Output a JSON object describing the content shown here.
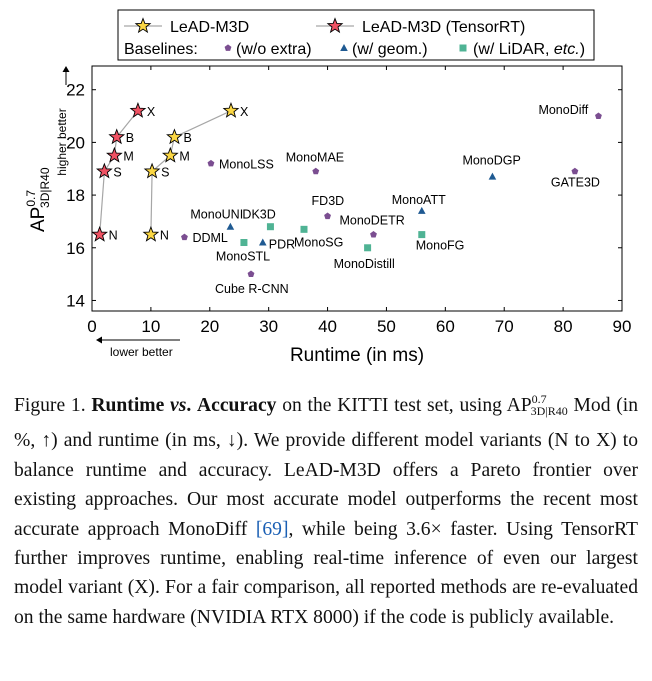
{
  "chart_data": {
    "type": "scatter",
    "xlabel": "Runtime (in ms)",
    "ylabel": "AP 0.7 3D|R40",
    "ylabel_parts": {
      "base": "AP",
      "sup": "0.7",
      "sub": "3D|R40"
    },
    "higher_better": "higher better",
    "lower_better": "lower better",
    "xlim": [
      0,
      90
    ],
    "ylim": [
      13.6,
      22.9
    ],
    "xticks": [
      0,
      10,
      20,
      30,
      40,
      50,
      60,
      70,
      80,
      90
    ],
    "yticks": [
      14,
      16,
      18,
      20,
      22
    ],
    "legend": {
      "series1": "LeAD-M3D",
      "series2": "LeAD-M3D (TensorRT)",
      "baselines_label": "Baselines:",
      "b1": "(w/o extra)",
      "b2": "(w/ geom.)",
      "b3_pre": "(w/ LiDAR,",
      "b3_italic": "etc.",
      "b3_post": ")"
    },
    "colors": {
      "star_default": "#fbd744",
      "star_tensorrt": "#ef5263",
      "wo_extra": "#7b4e91",
      "geom": "#1f5a92",
      "lidar": "#4fb394",
      "line": "#a6a6a6"
    },
    "series": [
      {
        "name": "LeAD-M3D",
        "marker": "star",
        "points": [
          {
            "label": "N",
            "x": 10.0,
            "y": 16.5
          },
          {
            "label": "S",
            "x": 10.2,
            "y": 18.9
          },
          {
            "label": "M",
            "x": 13.3,
            "y": 19.5
          },
          {
            "label": "B",
            "x": 14.0,
            "y": 20.2
          },
          {
            "label": "X",
            "x": 23.6,
            "y": 21.2
          }
        ]
      },
      {
        "name": "LeAD-M3D (TensorRT)",
        "marker": "star",
        "points": [
          {
            "label": "N",
            "x": 1.3,
            "y": 16.5
          },
          {
            "label": "S",
            "x": 2.1,
            "y": 18.9
          },
          {
            "label": "M",
            "x": 3.8,
            "y": 19.5
          },
          {
            "label": "B",
            "x": 4.2,
            "y": 20.2
          },
          {
            "label": "X",
            "x": 7.8,
            "y": 21.2
          }
        ]
      }
    ],
    "baselines": [
      {
        "name": "MonoDiff",
        "group": "wo_extra",
        "x": 86.0,
        "y": 21.0
      },
      {
        "name": "GATE3D",
        "group": "wo_extra",
        "x": 82.0,
        "y": 18.9
      },
      {
        "name": "MonoLSS",
        "group": "wo_extra",
        "x": 20.2,
        "y": 19.2
      },
      {
        "name": "MonoMAE",
        "group": "wo_extra",
        "x": 38.0,
        "y": 18.9
      },
      {
        "name": "DDML",
        "group": "wo_extra",
        "x": 15.7,
        "y": 16.4
      },
      {
        "name": "Cube R-CNN",
        "group": "wo_extra",
        "x": 27.0,
        "y": 15.0
      },
      {
        "name": "MonoDETR",
        "group": "wo_extra",
        "x": 47.8,
        "y": 16.5
      },
      {
        "name": "MonoDGP",
        "group": "geom",
        "x": 68.0,
        "y": 18.7
      },
      {
        "name": "MonoATT",
        "group": "geom",
        "x": 56.0,
        "y": 17.4
      },
      {
        "name": "MonoUNI",
        "group": "geom",
        "x": 23.5,
        "y": 16.8
      },
      {
        "name": "PDR",
        "group": "geom",
        "x": 29.0,
        "y": 16.2
      },
      {
        "name": "DK3D",
        "group": "lidar",
        "x": 30.3,
        "y": 16.8
      },
      {
        "name": "FD3D",
        "group": "wo_extra",
        "x": 40.0,
        "y": 17.2
      },
      {
        "name": "MonoSTL",
        "group": "lidar",
        "x": 25.8,
        "y": 16.2
      },
      {
        "name": "MonoSG",
        "group": "lidar",
        "x": 36.0,
        "y": 16.7
      },
      {
        "name": "MonoDistill",
        "group": "lidar",
        "x": 46.8,
        "y": 16.0
      },
      {
        "name": "MonoFG",
        "group": "lidar",
        "x": 56.0,
        "y": 16.5
      }
    ]
  },
  "caption": {
    "figure_label": "Figure 1.",
    "title_a": "Runtime",
    "title_vs": "vs",
    "title_dot": ".",
    "title_b": "Accuracy",
    "t1": "on the KITTI test set, using",
    "ap": "AP",
    "ap_sup": "0.7",
    "ap_sub": "3D|R40",
    "t2": "Mod (in %, ↑) and runtime (in ms, ↓). We provide different model variants (N to X) to balance runtime and accuracy. LeAD-M3D offers a Pareto frontier over existing approaches. Our most accurate model outperforms the recent most accurate approach MonoDiff",
    "ref": "[69]",
    "t3": ", while being 3.6× faster. Using TensorRT further improves runtime, enabling real-time inference of even our largest model variant (X). For a fair comparison, all reported methods are re-evaluated on the same hardware (NVIDIA RTX 8000) if the code is publicly available."
  }
}
